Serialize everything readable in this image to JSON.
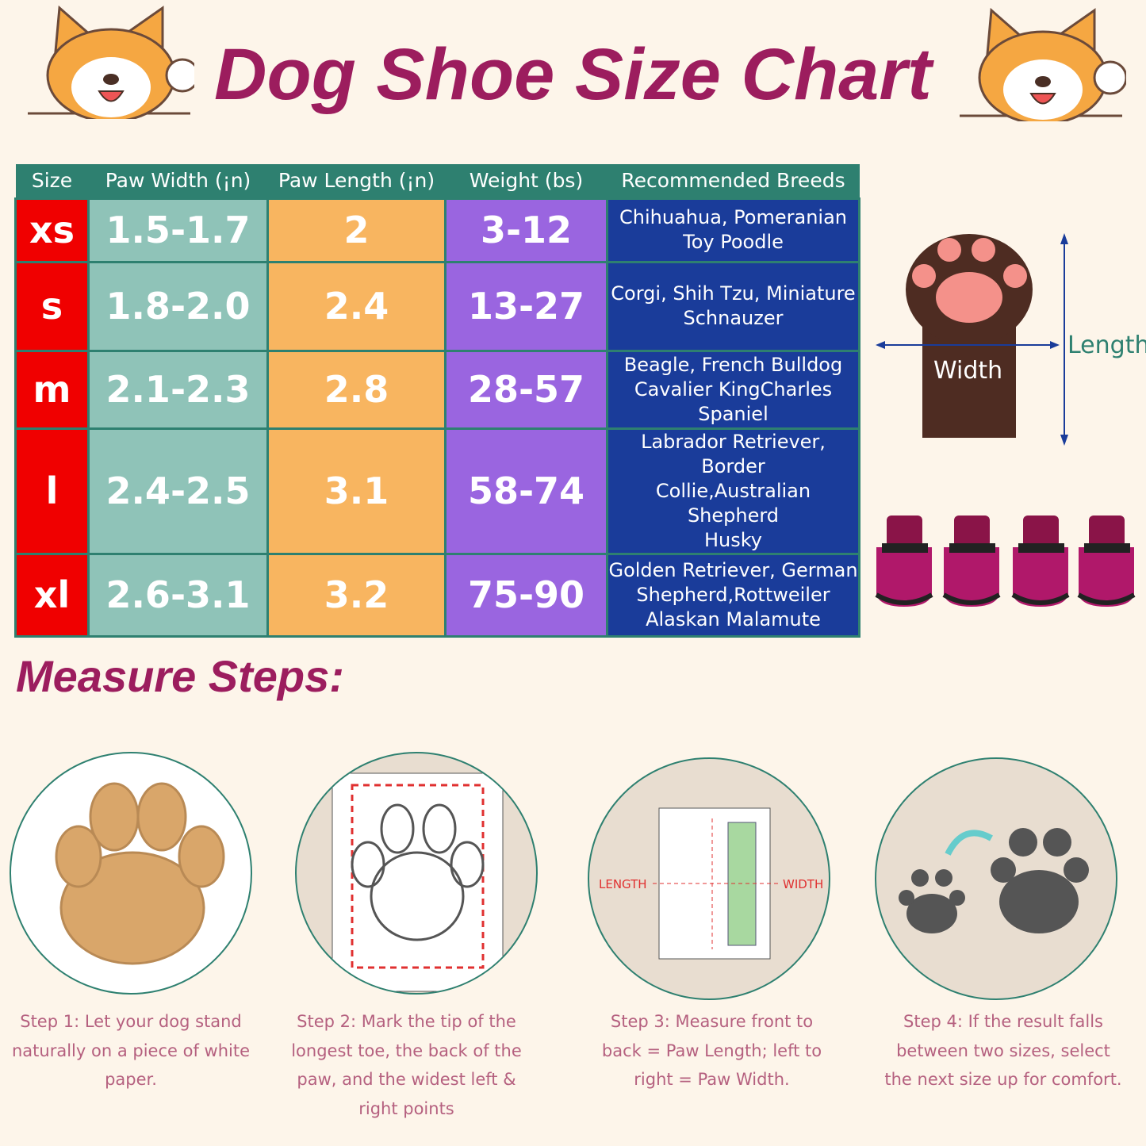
{
  "title": "Dog Shoe Size Chart",
  "table": {
    "headers": [
      "Size",
      "Paw Width (¡n)",
      "Paw Length (¡n)",
      "Weight (bs)",
      "Recommended Breeds"
    ],
    "rows": [
      {
        "size": "xs",
        "width": "1.5-1.7",
        "length": "2",
        "weight": "3-12",
        "breeds": [
          "Chihuahua, Pomeranian",
          "Toy Poodle"
        ]
      },
      {
        "size": "s",
        "width": "1.8-2.0",
        "length": "2.4",
        "weight": "13-27",
        "breeds": [
          "Corgi, Shih Tzu, Miniature",
          "Schnauzer"
        ]
      },
      {
        "size": "m",
        "width": "2.1-2.3",
        "length": "2.8",
        "weight": "28-57",
        "breeds": [
          "Beagle, French Bulldog",
          "Cavalier KingCharles",
          "Spaniel"
        ]
      },
      {
        "size": "l",
        "width": "2.4-2.5",
        "length": "3.1",
        "weight": "58-74",
        "breeds": [
          "Labrador Retriever, Border",
          "Collie,Australian Shepherd",
          "Husky"
        ]
      },
      {
        "size": "xl",
        "width": "2.6-3.1",
        "length": "3.2",
        "weight": "75-90",
        "breeds": [
          "Golden Retriever, German",
          "Shepherd,Rottweiler",
          "Alaskan Malamute"
        ]
      }
    ]
  },
  "diagram": {
    "width_label": "Width",
    "length_label": "Length",
    "ruler_length": "LENGTH",
    "ruler_width": "WIDTH"
  },
  "measure_title": "Measure Steps:",
  "steps": [
    "Step 1:  Let your dog stand naturally on a piece of white paper.",
    "Step 2:  Mark the tip of the longest toe, the back of the paw, and the widest left & right points",
    "Step 3:  Measure front to back = Paw Length; left to right = Paw Width.",
    "Step 4:  If the result falls between two sizes, select the next size up for comfort."
  ],
  "colors": {
    "title": "#9c1d5e",
    "header": "#2e8070",
    "size": "#f00000",
    "width": "#8fc3b8",
    "length": "#f8b560",
    "weight": "#9a65e0",
    "breeds": "#1a3c9a"
  }
}
